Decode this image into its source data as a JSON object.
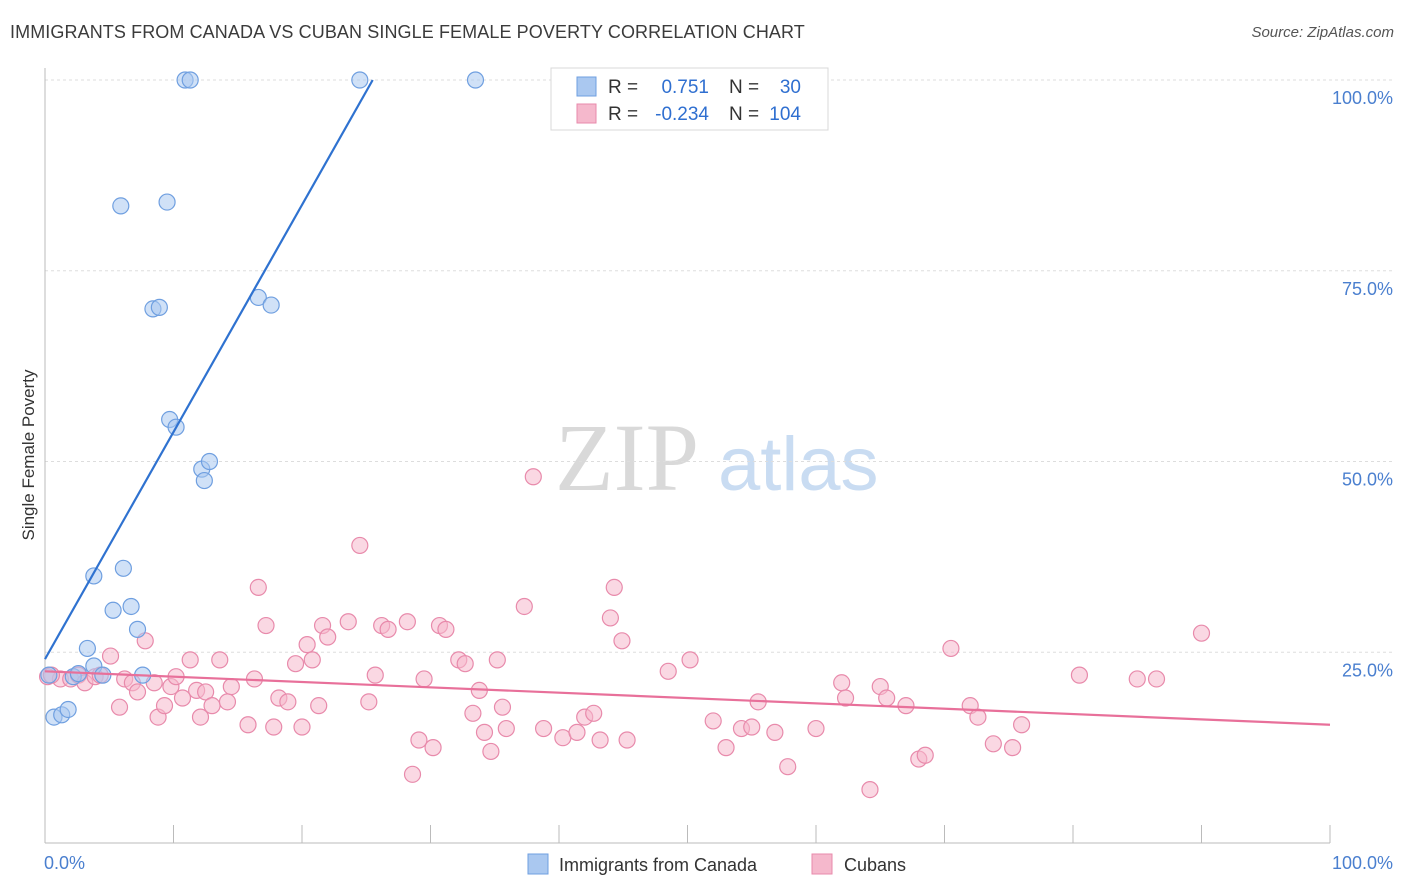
{
  "title": "IMMIGRANTS FROM CANADA VS CUBAN SINGLE FEMALE POVERTY CORRELATION CHART",
  "source": "Source: ZipAtlas.com",
  "watermark": {
    "zip": "ZIP",
    "atlas": "atlas"
  },
  "colors": {
    "blue_fill": "#aac8f0",
    "blue_stroke": "#6f9fe0",
    "blue_line": "#2f72d0",
    "pink_fill": "#f5b8cc",
    "pink_stroke": "#e88aab",
    "pink_line": "#e8709a",
    "value_text": "#2f6fd0",
    "grid": "#dddddd"
  },
  "legend": {
    "rows": [
      {
        "r_label": "R =",
        "r_value": "0.751",
        "n_label": "N =",
        "n_value": "30"
      },
      {
        "r_label": "R =",
        "r_value": "-0.234",
        "n_label": "N =",
        "n_value": "104"
      }
    ]
  },
  "bottom_legend": [
    "Immigrants from Canada",
    "Cubans"
  ],
  "chart_data": {
    "type": "scatter",
    "xlabel": "",
    "ylabel": "Single Female Poverty",
    "xlim": [
      0,
      100
    ],
    "ylim": [
      0,
      100
    ],
    "x_tick_labels": [
      "0.0%",
      "100.0%"
    ],
    "y_ticks": [
      25,
      50,
      75,
      100
    ],
    "y_tick_labels": [
      "25.0%",
      "50.0%",
      "75.0%",
      "100.0%"
    ],
    "grid": true,
    "series": [
      {
        "name": "Immigrants from Canada",
        "r": 0.751,
        "n": 30,
        "trendline": [
          [
            0,
            24.1
          ],
          [
            25.5,
            100
          ]
        ],
        "points": [
          [
            0.3,
            22
          ],
          [
            0.7,
            16.5
          ],
          [
            1.3,
            16.8
          ],
          [
            1.8,
            17.5
          ],
          [
            2.2,
            21.8
          ],
          [
            2.6,
            22.2
          ],
          [
            3.3,
            25.5
          ],
          [
            3.8,
            23.2
          ],
          [
            4.5,
            22.0
          ],
          [
            3.8,
            35.0
          ],
          [
            5.3,
            30.5
          ],
          [
            5.9,
            83.5
          ],
          [
            6.1,
            36.0
          ],
          [
            6.7,
            31.0
          ],
          [
            7.2,
            28.0
          ],
          [
            7.6,
            22.0
          ],
          [
            8.4,
            70.0
          ],
          [
            8.9,
            70.2
          ],
          [
            9.5,
            84.0
          ],
          [
            9.7,
            55.5
          ],
          [
            10.2,
            54.5
          ],
          [
            10.9,
            100
          ],
          [
            11.3,
            100
          ],
          [
            12.2,
            49.0
          ],
          [
            12.4,
            47.5
          ],
          [
            12.8,
            50.0
          ],
          [
            16.6,
            71.5
          ],
          [
            17.6,
            70.5
          ],
          [
            24.5,
            100
          ],
          [
            33.5,
            100
          ]
        ]
      },
      {
        "name": "Cubans",
        "r": -0.234,
        "n": 104,
        "trendline": [
          [
            0,
            22.5
          ],
          [
            100,
            15.5
          ]
        ],
        "points": [
          [
            0.2,
            21.8
          ],
          [
            1.2,
            21.5
          ],
          [
            2.0,
            21.5
          ],
          [
            2.6,
            22.0
          ],
          [
            3.1,
            21.0
          ],
          [
            3.9,
            21.8
          ],
          [
            4.3,
            22.0
          ],
          [
            5.1,
            24.5
          ],
          [
            5.8,
            17.8
          ],
          [
            6.2,
            21.5
          ],
          [
            6.8,
            21.0
          ],
          [
            7.2,
            19.8
          ],
          [
            7.8,
            26.5
          ],
          [
            8.5,
            21.0
          ],
          [
            8.8,
            16.5
          ],
          [
            9.3,
            18.0
          ],
          [
            9.8,
            20.5
          ],
          [
            10.2,
            21.8
          ],
          [
            10.7,
            19.0
          ],
          [
            11.3,
            24.0
          ],
          [
            11.8,
            20.0
          ],
          [
            12.1,
            16.5
          ],
          [
            12.5,
            19.8
          ],
          [
            13.0,
            18.0
          ],
          [
            13.6,
            24.0
          ],
          [
            14.2,
            18.5
          ],
          [
            14.5,
            20.5
          ],
          [
            15.8,
            15.5
          ],
          [
            16.3,
            21.5
          ],
          [
            16.6,
            33.5
          ],
          [
            17.2,
            28.5
          ],
          [
            17.8,
            15.2
          ],
          [
            18.2,
            19.0
          ],
          [
            18.9,
            18.5
          ],
          [
            19.5,
            23.5
          ],
          [
            20.0,
            15.2
          ],
          [
            20.4,
            26.0
          ],
          [
            20.8,
            24.0
          ],
          [
            21.3,
            18.0
          ],
          [
            21.6,
            28.5
          ],
          [
            22.0,
            27.0
          ],
          [
            23.6,
            29.0
          ],
          [
            24.5,
            39.0
          ],
          [
            25.2,
            18.5
          ],
          [
            25.7,
            22.0
          ],
          [
            26.2,
            28.5
          ],
          [
            26.7,
            28.0
          ],
          [
            28.2,
            29.0
          ],
          [
            28.6,
            9.0
          ],
          [
            29.1,
            13.5
          ],
          [
            29.5,
            21.5
          ],
          [
            30.2,
            12.5
          ],
          [
            30.7,
            28.5
          ],
          [
            31.2,
            28.0
          ],
          [
            32.2,
            24.0
          ],
          [
            32.7,
            23.5
          ],
          [
            33.3,
            17.0
          ],
          [
            33.8,
            20.0
          ],
          [
            34.2,
            14.5
          ],
          [
            34.7,
            12.0
          ],
          [
            35.2,
            24.0
          ],
          [
            35.6,
            17.8
          ],
          [
            35.9,
            15.0
          ],
          [
            37.3,
            31.0
          ],
          [
            38.0,
            48.0
          ],
          [
            38.8,
            15.0
          ],
          [
            40.3,
            13.8
          ],
          [
            41.4,
            14.5
          ],
          [
            42.0,
            16.5
          ],
          [
            42.7,
            17.0
          ],
          [
            43.2,
            13.5
          ],
          [
            44.0,
            29.5
          ],
          [
            44.3,
            33.5
          ],
          [
            44.9,
            26.5
          ],
          [
            45.3,
            13.5
          ],
          [
            48.5,
            22.5
          ],
          [
            50.2,
            24.0
          ],
          [
            52.0,
            16.0
          ],
          [
            53.0,
            12.5
          ],
          [
            54.2,
            15.0
          ],
          [
            55.0,
            15.2
          ],
          [
            55.5,
            18.5
          ],
          [
            56.8,
            14.5
          ],
          [
            57.8,
            10.0
          ],
          [
            60.0,
            15.0
          ],
          [
            62.0,
            21.0
          ],
          [
            62.3,
            19.0
          ],
          [
            64.2,
            7.0
          ],
          [
            65.0,
            20.5
          ],
          [
            65.5,
            19.0
          ],
          [
            67.0,
            18.0
          ],
          [
            68.0,
            11.0
          ],
          [
            68.5,
            11.5
          ],
          [
            70.5,
            25.5
          ],
          [
            72.0,
            18.0
          ],
          [
            72.6,
            16.5
          ],
          [
            73.8,
            13.0
          ],
          [
            75.3,
            12.5
          ],
          [
            76.0,
            15.5
          ],
          [
            80.5,
            22.0
          ],
          [
            85.0,
            21.5
          ],
          [
            86.5,
            21.5
          ],
          [
            90.0,
            27.5
          ],
          [
            0.5,
            22.0
          ]
        ]
      }
    ]
  }
}
